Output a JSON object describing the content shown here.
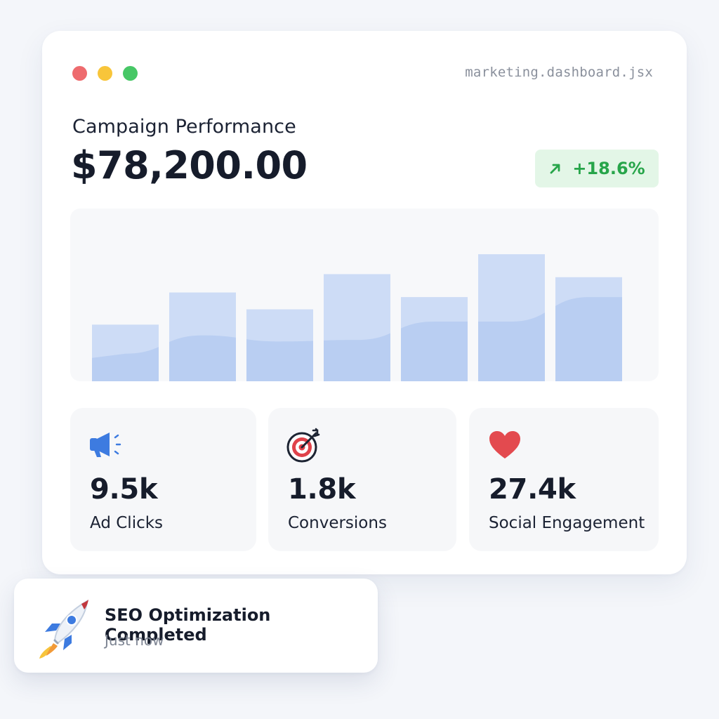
{
  "window": {
    "filename": "marketing.dashboard.jsx"
  },
  "header": {
    "subtitle": "Campaign Performance",
    "amount": "$78,200.00",
    "change": "+18.6%",
    "change_icon": "arrow-up-right-icon"
  },
  "chart_data": {
    "type": "bar",
    "categories": [
      "",
      "",
      "",
      "",
      "",
      "",
      ""
    ],
    "values": [
      37,
      58,
      47,
      70,
      55,
      83,
      68
    ],
    "trend": [
      18,
      30,
      26,
      27,
      39,
      39,
      55
    ],
    "ylim": [
      0,
      100
    ],
    "colors": {
      "bar": "#cddcf6",
      "trend": "#b2c9f0"
    }
  },
  "stats": [
    {
      "icon": "megaphone-icon",
      "value": "9.5k",
      "label": "Ad Clicks"
    },
    {
      "icon": "target-icon",
      "value": "1.8k",
      "label": "Conversions"
    },
    {
      "icon": "heart-icon",
      "value": "27.4k",
      "label": "Social Engagement"
    }
  ],
  "toast": {
    "icon": "rocket-icon",
    "title": "SEO Optimization Completed",
    "time": "Just now"
  },
  "colors": {
    "accent_green": "#27a54a",
    "badge_bg": "#e3f6e7",
    "heart": "#e34a4f",
    "megaphone": "#3d7be0"
  }
}
